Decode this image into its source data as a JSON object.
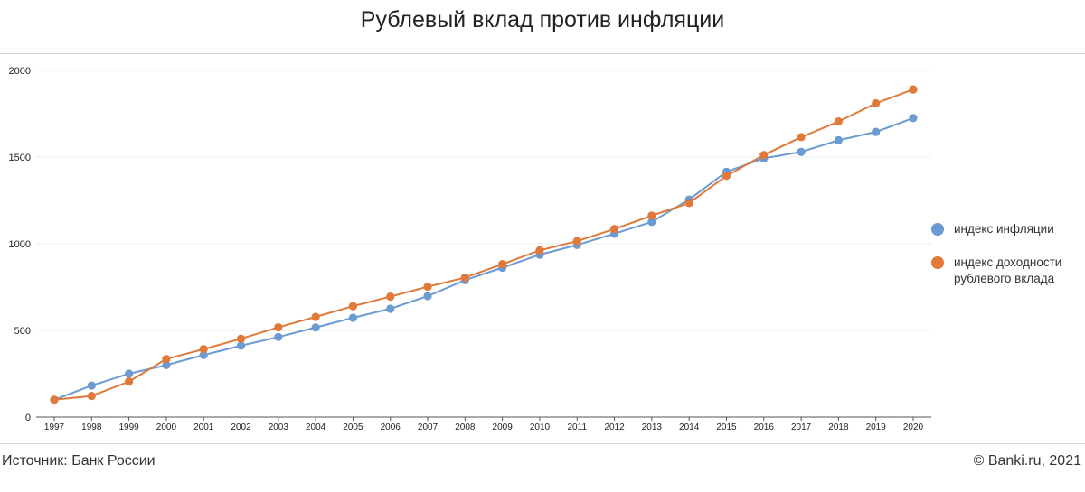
{
  "page": {
    "title": "Рублевый вклад против инфляции",
    "source": "Источник: Банк России",
    "copyright": "© Banki.ru, 2021"
  },
  "chart_data": {
    "type": "line",
    "title": "Рублевый вклад против инфляции",
    "xlabel": "",
    "ylabel": "",
    "categories": [
      "1997",
      "1998",
      "1999",
      "2000",
      "2001",
      "2002",
      "2003",
      "2004",
      "2005",
      "2006",
      "2007",
      "2008",
      "2009",
      "2010",
      "2011",
      "2012",
      "2013",
      "2014",
      "2015",
      "2016",
      "2017",
      "2018",
      "2019",
      "2020"
    ],
    "ylim": [
      0,
      2000
    ],
    "yticks": [
      0,
      500,
      1000,
      1500,
      2000
    ],
    "grid": true,
    "legend_position": "right",
    "series": [
      {
        "name": "индекс инфляции",
        "color": "#6b9bd1",
        "values": [
          100,
          182,
          250,
          300,
          358,
          412,
          462,
          517,
          573,
          625,
          698,
          790,
          862,
          937,
          993,
          1058,
          1126,
          1255,
          1415,
          1493,
          1530,
          1597,
          1645,
          1725
        ]
      },
      {
        "name": "индекс доходности рублевого вклада",
        "color": "#e0793a",
        "values": [
          100,
          122,
          205,
          335,
          392,
          452,
          518,
          578,
          640,
          695,
          752,
          805,
          882,
          962,
          1015,
          1085,
          1162,
          1235,
          1392,
          1512,
          1615,
          1705,
          1810,
          1890
        ]
      }
    ],
    "legend_lines": [
      [
        "индекс инфляции"
      ],
      [
        "индекс доходности",
        "рублевого вклада"
      ]
    ]
  }
}
